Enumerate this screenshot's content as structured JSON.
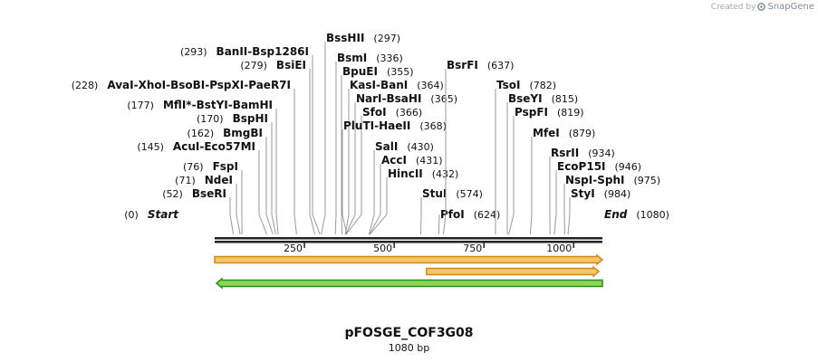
{
  "credit": {
    "prefix": "Created by",
    "brand": "SnapGene"
  },
  "plasmid": {
    "name": "pFOSGE_COF3G08",
    "length_label": "1080 bp",
    "length": 1080
  },
  "sites": [
    {
      "pos": "(0)",
      "names": [
        "Start"
      ],
      "bp": 0,
      "terminus": true
    },
    {
      "pos": "(52)",
      "names": [
        "BseRI"
      ],
      "bp": 52
    },
    {
      "pos": "(71)",
      "names": [
        "NdeI"
      ],
      "bp": 71
    },
    {
      "pos": "(76)",
      "names": [
        "FspI"
      ],
      "bp": 76
    },
    {
      "pos": "(145)",
      "names": [
        "AcuI",
        "Eco57MI"
      ],
      "bp": 145
    },
    {
      "pos": "(162)",
      "names": [
        "BmgBI"
      ],
      "bp": 162
    },
    {
      "pos": "(170)",
      "names": [
        "BspHI"
      ],
      "bp": 170
    },
    {
      "pos": "(177)",
      "names": [
        "MflI",
        "BstYI",
        "BamHI"
      ],
      "bp": 177,
      "star": "*"
    },
    {
      "pos": "(228)",
      "names": [
        "AvaI",
        "XhoI",
        "BsoBI",
        "PspXI",
        "PaeR7I"
      ],
      "bp": 228
    },
    {
      "pos": "(279)",
      "names": [
        "BsiEI"
      ],
      "bp": 279
    },
    {
      "pos": "(293)",
      "names": [
        "BanII",
        "Bsp1286I"
      ],
      "bp": 293
    },
    {
      "pos": "(297)",
      "names": [
        "BssHII"
      ],
      "bp": 297
    },
    {
      "pos": "(336)",
      "names": [
        "BsmI"
      ],
      "bp": 336
    },
    {
      "pos": "(355)",
      "names": [
        "BpuEI"
      ],
      "bp": 355
    },
    {
      "pos": "(364)",
      "names": [
        "KasI",
        "BanI"
      ],
      "bp": 364
    },
    {
      "pos": "(365)",
      "names": [
        "NarI",
        "BsaHI"
      ],
      "bp": 365
    },
    {
      "pos": "(366)",
      "names": [
        "SfoI"
      ],
      "bp": 366
    },
    {
      "pos": "(368)",
      "names": [
        "PluTI",
        "HaeII"
      ],
      "bp": 368
    },
    {
      "pos": "(430)",
      "names": [
        "SalI"
      ],
      "bp": 430
    },
    {
      "pos": "(431)",
      "names": [
        "AccI"
      ],
      "bp": 431
    },
    {
      "pos": "(432)",
      "names": [
        "HincII"
      ],
      "bp": 432
    },
    {
      "pos": "(574)",
      "names": [
        "StuI"
      ],
      "bp": 574
    },
    {
      "pos": "(624)",
      "names": [
        "PfoI"
      ],
      "bp": 624
    },
    {
      "pos": "(637)",
      "names": [
        "BsrFI"
      ],
      "bp": 637
    },
    {
      "pos": "(782)",
      "names": [
        "TsoI"
      ],
      "bp": 782
    },
    {
      "pos": "(815)",
      "names": [
        "BseYI"
      ],
      "bp": 815
    },
    {
      "pos": "(819)",
      "names": [
        "PspFI"
      ],
      "bp": 819
    },
    {
      "pos": "(879)",
      "names": [
        "MfeI"
      ],
      "bp": 879
    },
    {
      "pos": "(934)",
      "names": [
        "RsrII"
      ],
      "bp": 934
    },
    {
      "pos": "(946)",
      "names": [
        "EcoP15I"
      ],
      "bp": 946
    },
    {
      "pos": "(975)",
      "names": [
        "NspI",
        "SphI"
      ],
      "bp": 975
    },
    {
      "pos": "(984)",
      "names": [
        "StyI"
      ],
      "bp": 984
    },
    {
      "pos": "(1080)",
      "names": [
        "End"
      ],
      "bp": 1080,
      "terminus": true
    }
  ],
  "ruler": {
    "ticks": [
      250,
      500,
      750,
      1000
    ],
    "tick_labels": [
      "250",
      "500",
      "750",
      "1000"
    ]
  },
  "features": [
    {
      "start": 0,
      "end": 1080,
      "direction": "forward",
      "fill": "#f5c56a",
      "border": "#d18a1a"
    },
    {
      "start": 590,
      "end": 1070,
      "direction": "forward",
      "fill": "#f5c56a",
      "border": "#d18a1a"
    },
    {
      "start": 5,
      "end": 1080,
      "direction": "reverse",
      "fill": "#8fd45a",
      "border": "#2a8f1a"
    }
  ]
}
